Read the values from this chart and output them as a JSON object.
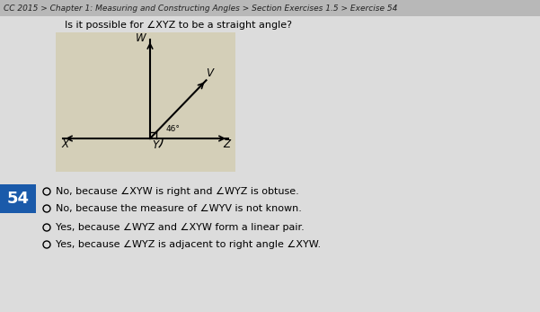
{
  "bg_color": "#dcdcdc",
  "header_bg": "#b8b8b8",
  "header_text": "CC 2015 > Chapter 1: Measuring and Constructing Angles > Section Exercises 1.5 > Exercise 54",
  "header_fontsize": 6.5,
  "question_text": "Is it possible for ∠XYZ to be a straight angle?",
  "question_fontsize": 8,
  "diagram_bg": "#d4cfb8",
  "angle_label": "46°",
  "number_box_color": "#1a5aaa",
  "number_text": "54",
  "number_fontsize": 13,
  "options": [
    "No, because ∠XYW is right and ∠WYZ is obtuse.",
    "No, because the measure of ∠WYV is not known.",
    "Yes, because ∠WYZ and ∠XYW form a linear pair.",
    "Yes, because ∠WYZ is adjacent to right angle ∠XYW."
  ],
  "option_fontsize": 8,
  "circle_fontsize": 8
}
